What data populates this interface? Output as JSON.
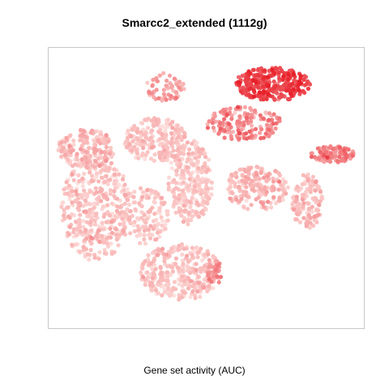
{
  "chart_data": {
    "type": "scatter",
    "title": "Smarcc2_extended (1112g)",
    "xlabel": "Gene set activity (AUC)",
    "ylabel": "",
    "axes_visible": false,
    "grid": false,
    "legend": "none",
    "xlim": [
      0,
      100
    ],
    "ylim": [
      0,
      100
    ],
    "color_scale": {
      "low": "#fde0dd",
      "high": "#e8202a",
      "min": 0,
      "max": 1
    },
    "clusters": [
      {
        "name": "left-large",
        "cx": 15,
        "cy": 43,
        "rx": 11,
        "ry": 19,
        "n": 420,
        "auc_mean": 0.12,
        "auc_sd": 0.09
      },
      {
        "name": "left-upper",
        "cx": 12,
        "cy": 64,
        "rx": 9,
        "ry": 7,
        "n": 180,
        "auc_mean": 0.16,
        "auc_sd": 0.1
      },
      {
        "name": "center-upper",
        "cx": 34,
        "cy": 67,
        "rx": 10,
        "ry": 8,
        "n": 230,
        "auc_mean": 0.13,
        "auc_sd": 0.08
      },
      {
        "name": "center-vertical",
        "cx": 45,
        "cy": 52,
        "rx": 7,
        "ry": 15,
        "n": 260,
        "auc_mean": 0.11,
        "auc_sd": 0.07
      },
      {
        "name": "bottom-center",
        "cx": 42,
        "cy": 20,
        "rx": 13,
        "ry": 10,
        "n": 330,
        "auc_mean": 0.12,
        "auc_sd": 0.08
      },
      {
        "name": "center-middle",
        "cx": 30,
        "cy": 40,
        "rx": 8,
        "ry": 10,
        "n": 140,
        "auc_mean": 0.12,
        "auc_sd": 0.08
      },
      {
        "name": "top-right-high",
        "cx": 71,
        "cy": 87,
        "rx": 12,
        "ry": 6,
        "n": 300,
        "auc_mean": 0.78,
        "auc_sd": 0.14
      },
      {
        "name": "top-mid-medium",
        "cx": 62,
        "cy": 73,
        "rx": 12,
        "ry": 6,
        "n": 160,
        "auc_mean": 0.42,
        "auc_sd": 0.14
      },
      {
        "name": "top-left-arm",
        "cx": 37,
        "cy": 86,
        "rx": 6,
        "ry": 5,
        "n": 60,
        "auc_mean": 0.3,
        "auc_sd": 0.12
      },
      {
        "name": "right-middle",
        "cx": 66,
        "cy": 50,
        "rx": 10,
        "ry": 8,
        "n": 180,
        "auc_mean": 0.18,
        "auc_sd": 0.1
      },
      {
        "name": "right-arm",
        "cx": 90,
        "cy": 62,
        "rx": 7,
        "ry": 3,
        "n": 110,
        "auc_mean": 0.42,
        "auc_sd": 0.12
      },
      {
        "name": "right-lower",
        "cx": 82,
        "cy": 45,
        "rx": 5,
        "ry": 10,
        "n": 140,
        "auc_mean": 0.16,
        "auc_sd": 0.09
      },
      {
        "name": "bottom-right-spot",
        "cx": 53,
        "cy": 20,
        "rx": 3,
        "ry": 4,
        "n": 40,
        "auc_mean": 0.38,
        "auc_sd": 0.12
      }
    ]
  }
}
